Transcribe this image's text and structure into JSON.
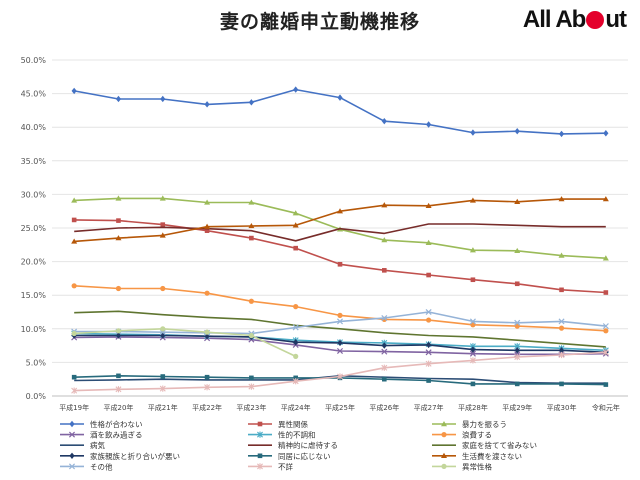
{
  "header": {
    "title": "妻の離婚申立動機推移",
    "logo_text_a": "All Ab",
    "logo_text_b": "ut"
  },
  "colors": {
    "logo_accent": "#e4002b"
  },
  "chart_data": {
    "type": "line",
    "title": "",
    "xlabel": "",
    "ylabel": "",
    "ylim": [
      0,
      50
    ],
    "y_format": "percent",
    "grid": true,
    "legend_position": "bottom",
    "categories": [
      "平成19年",
      "平成20年",
      "平成21年",
      "平成22年",
      "平成23年",
      "平成24年",
      "平成25年",
      "平成26年",
      "平成27年",
      "平成28年",
      "平成29年",
      "平成30年",
      "令和元年"
    ],
    "series": [
      {
        "name": "性格が合わない",
        "color": "#4472c4",
        "marker": "diamond",
        "values": [
          45.4,
          44.2,
          44.2,
          43.4,
          43.7,
          45.6,
          44.4,
          40.9,
          40.4,
          39.2,
          39.4,
          39.0,
          39.1
        ]
      },
      {
        "name": "異性関係",
        "color": "#c0504d",
        "marker": "square",
        "values": [
          26.2,
          26.1,
          25.5,
          24.6,
          23.5,
          22.0,
          19.6,
          18.7,
          18.0,
          17.3,
          16.7,
          15.8,
          15.4
        ]
      },
      {
        "name": "暴力を振るう",
        "color": "#9bbb59",
        "marker": "triangle",
        "values": [
          29.1,
          29.4,
          29.4,
          28.8,
          28.8,
          27.2,
          24.8,
          23.2,
          22.8,
          21.7,
          21.6,
          20.9,
          20.5
        ]
      },
      {
        "name": "酒を飲み過ぎる",
        "color": "#8064a2",
        "marker": "x",
        "values": [
          8.7,
          8.8,
          8.7,
          8.6,
          8.4,
          7.6,
          6.7,
          6.6,
          6.5,
          6.3,
          6.2,
          6.2,
          6.3
        ]
      },
      {
        "name": "性的不調和",
        "color": "#4bacc6",
        "marker": "star",
        "values": [
          9.3,
          9.2,
          9.1,
          8.9,
          8.8,
          8.3,
          8.0,
          7.9,
          7.7,
          7.4,
          7.4,
          7.1,
          6.8
        ]
      },
      {
        "name": "浪費する",
        "color": "#f79646",
        "marker": "circle",
        "values": [
          16.4,
          16.0,
          16.0,
          15.3,
          14.1,
          13.3,
          12.0,
          11.4,
          11.3,
          10.6,
          10.4,
          10.1,
          9.7
        ]
      },
      {
        "name": "病気",
        "color": "#2c4d75",
        "marker": "none",
        "values": [
          2.3,
          2.4,
          2.5,
          2.4,
          2.4,
          2.4,
          3.0,
          2.8,
          2.6,
          2.5,
          2.0,
          1.9,
          1.9
        ]
      },
      {
        "name": "精神的に虐待する",
        "color": "#772c2a",
        "marker": "none",
        "values": [
          24.5,
          25.0,
          25.1,
          24.9,
          24.6,
          23.1,
          24.9,
          24.2,
          25.6,
          25.6,
          25.4,
          25.2,
          25.2
        ]
      },
      {
        "name": "家庭を捨てて省みない",
        "color": "#5f7530",
        "marker": "none",
        "values": [
          12.4,
          12.6,
          12.1,
          11.7,
          11.4,
          10.5,
          10.0,
          9.4,
          9.0,
          8.8,
          8.3,
          7.8,
          7.3
        ]
      },
      {
        "name": "家族親族と折り合いが悪い",
        "color": "#1f3864",
        "marker": "diamond",
        "values": [
          9.0,
          9.0,
          9.0,
          8.9,
          8.8,
          8.0,
          7.9,
          7.5,
          7.6,
          6.9,
          6.8,
          6.8,
          6.5
        ]
      },
      {
        "name": "同居に応じない",
        "color": "#276a7c",
        "marker": "square",
        "values": [
          2.8,
          3.0,
          2.9,
          2.8,
          2.7,
          2.7,
          2.7,
          2.5,
          2.3,
          1.8,
          1.8,
          1.8,
          1.7
        ]
      },
      {
        "name": "生活費を渡さない",
        "color": "#b65708",
        "marker": "triangle",
        "values": [
          23.0,
          23.5,
          23.9,
          25.2,
          25.3,
          25.4,
          27.5,
          28.4,
          28.3,
          29.1,
          28.9,
          29.3,
          29.3
        ]
      },
      {
        "name": "その他",
        "color": "#95b3d7",
        "marker": "x",
        "values": [
          9.6,
          9.6,
          9.5,
          9.4,
          9.3,
          10.2,
          11.1,
          11.6,
          12.5,
          11.1,
          10.9,
          11.1,
          10.4
        ]
      },
      {
        "name": "不詳",
        "color": "#e6b9b8",
        "marker": "star",
        "values": [
          0.8,
          1.0,
          1.1,
          1.3,
          1.4,
          2.2,
          2.9,
          4.2,
          4.8,
          5.3,
          5.8,
          6.1,
          6.5
        ]
      },
      {
        "name": "異常性格",
        "color": "#c3d69b",
        "marker": "circle",
        "values": [
          9.3,
          9.7,
          10.0,
          9.5,
          9.0,
          5.9,
          null,
          null,
          null,
          null,
          null,
          null,
          null
        ]
      }
    ],
    "y_ticks": [
      "0.0%",
      "5.0%",
      "10.0%",
      "15.0%",
      "20.0%",
      "25.0%",
      "30.0%",
      "35.0%",
      "40.0%",
      "45.0%",
      "50.0%"
    ]
  }
}
